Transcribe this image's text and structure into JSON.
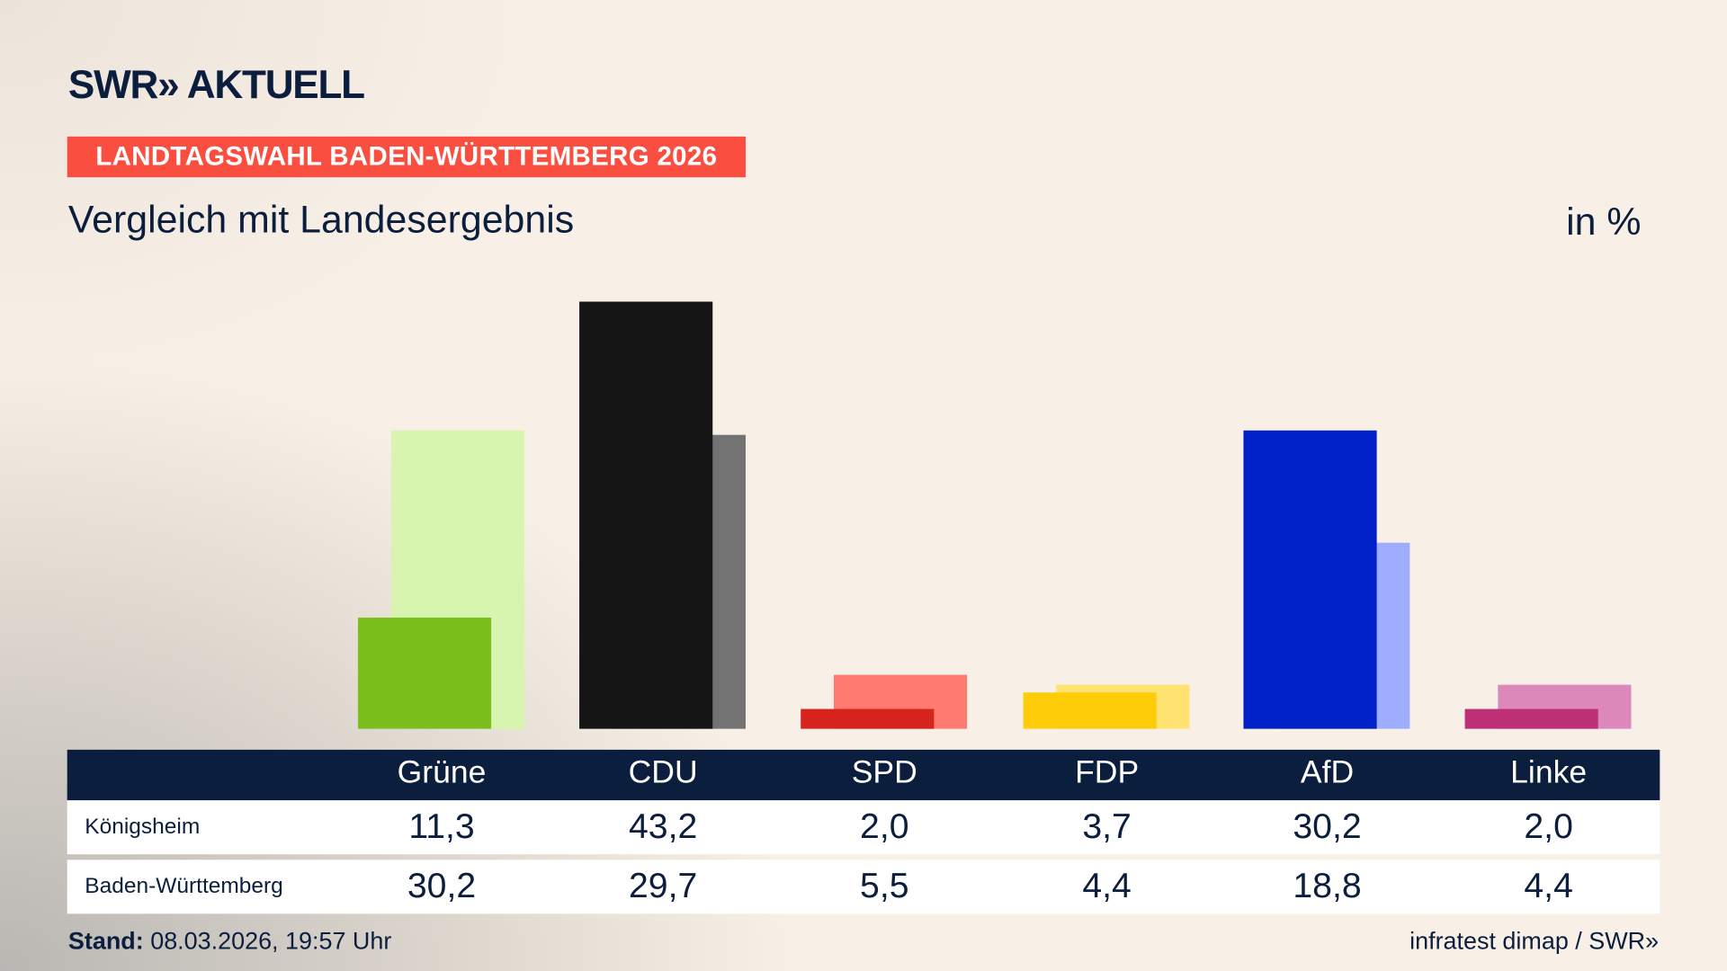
{
  "header": {
    "logo": "SWR» AKTUELL",
    "kicker": "LANDTAGSWAHL BADEN-WÜRTTEMBERG 2026",
    "subtitle": "Vergleich mit Landesergebnis",
    "unit": "in %"
  },
  "chart_data": {
    "type": "bar",
    "categories": [
      "Grüne",
      "CDU",
      "SPD",
      "FDP",
      "AfD",
      "Linke"
    ],
    "series": [
      {
        "name": "Königsheim",
        "values": [
          11.3,
          43.2,
          2.0,
          3.7,
          30.2,
          2.0
        ],
        "colors": [
          "#7abf1c",
          "#151515",
          "#d6231e",
          "#ffcc0a",
          "#0020c8",
          "#be3075"
        ]
      },
      {
        "name": "Baden-Württemberg",
        "values": [
          30.2,
          29.7,
          5.5,
          4.4,
          18.8,
          4.4
        ],
        "colors": [
          "#d7f5ae",
          "#737373",
          "#ff7a70",
          "#ffe270",
          "#9fadff",
          "#dd88bb"
        ]
      }
    ],
    "display_values": [
      [
        "11,3",
        "43,2",
        "2,0",
        "3,7",
        "30,2",
        "2,0"
      ],
      [
        "30,2",
        "29,7",
        "5,5",
        "4,4",
        "18,8",
        "4,4"
      ]
    ],
    "ylim": [
      0,
      45
    ]
  },
  "footer": {
    "stand_label": "Stand:",
    "stand_value": " 08.03.2026, 19:57 Uhr",
    "source": "infratest dimap / SWR»"
  }
}
